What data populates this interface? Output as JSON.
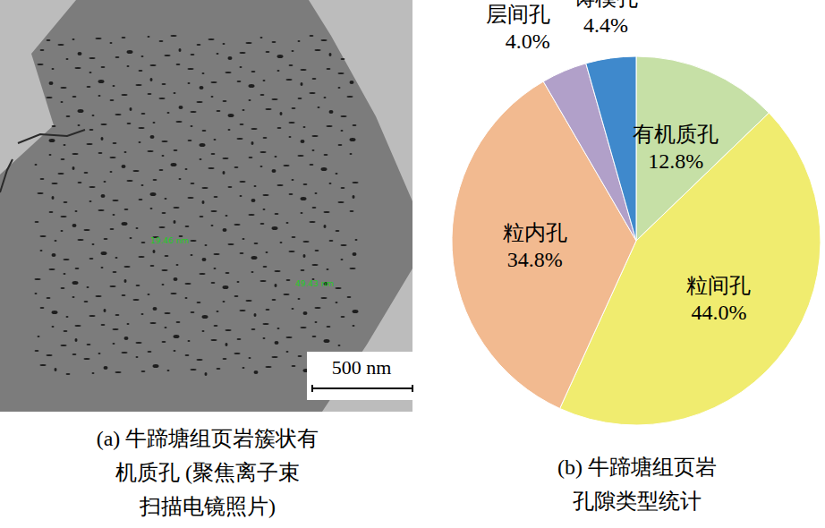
{
  "chart_data": {
    "type": "pie",
    "title": [
      "(b) 牛蹄塘组页岩",
      "孔隙类型统计"
    ],
    "categories": [
      "有机质孔",
      "粒间孔",
      "粒内孔",
      "层间孔",
      "铸模孔"
    ],
    "values": [
      12.8,
      44,
      34.8,
      4,
      4.4
    ],
    "value_labels": [
      "12.8%",
      "44.0%",
      "34.8%",
      "4.0%",
      "4.4%"
    ],
    "colors": [
      "#c6e0a6",
      "#f0ec6f",
      "#f2ba90",
      "#b1a0c9",
      "#3f89cc"
    ],
    "data_labels": true
  },
  "image_panel": {
    "caption": [
      "(a) 牛蹄塘组页岩簇状有",
      "机质孔 (聚焦离子束",
      "扫描电镜照片)"
    ],
    "scale_bar": "500 nm",
    "measurements": [
      "19.46 nm",
      "49.43 nm"
    ]
  }
}
